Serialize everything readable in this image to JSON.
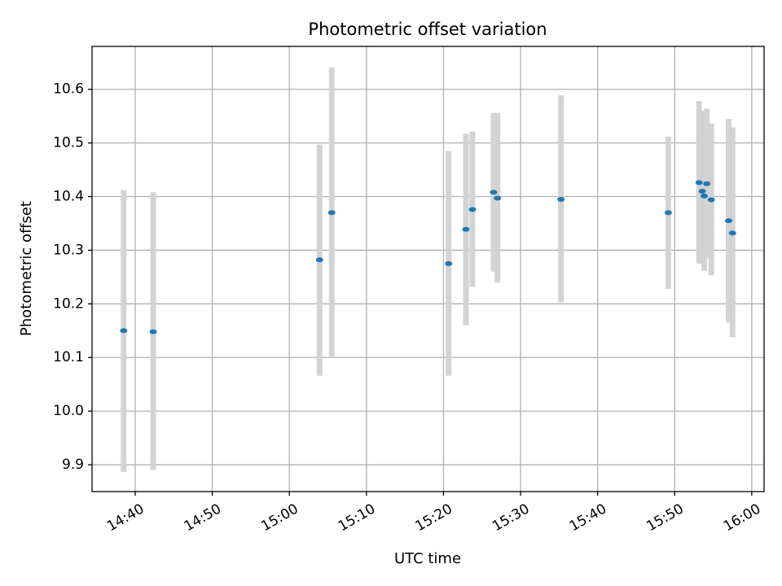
{
  "chart_data": {
    "type": "scatter",
    "title": "Photometric offset variation",
    "xlabel": "UTC time",
    "ylabel": "Photometric offset",
    "grid": true,
    "xlim": [
      "14:34:24",
      "16:01:36"
    ],
    "ylim": [
      9.85,
      10.68
    ],
    "x_ticks": [
      "14:40",
      "14:50",
      "15:00",
      "15:10",
      "15:20",
      "15:30",
      "15:40",
      "15:50",
      "16:00"
    ],
    "y_ticks": [
      "9.9",
      "10.0",
      "10.1",
      "10.2",
      "10.3",
      "10.4",
      "10.5",
      "10.6"
    ],
    "colors": {
      "points": "#1f77b4",
      "errorbars": "#d3d3d3",
      "grid": "#b0b0b0"
    },
    "points": [
      {
        "x": "14:38:30",
        "y": 10.15,
        "ylow": 9.887,
        "yhigh": 10.412
      },
      {
        "x": "14:42:20",
        "y": 10.148,
        "ylow": 9.89,
        "yhigh": 10.408
      },
      {
        "x": "15:03:55",
        "y": 10.282,
        "ylow": 10.066,
        "yhigh": 10.497
      },
      {
        "x": "15:05:30",
        "y": 10.37,
        "ylow": 10.1,
        "yhigh": 10.641
      },
      {
        "x": "15:20:40",
        "y": 10.275,
        "ylow": 10.066,
        "yhigh": 10.485
      },
      {
        "x": "15:22:55",
        "y": 10.339,
        "ylow": 10.16,
        "yhigh": 10.517
      },
      {
        "x": "15:23:45",
        "y": 10.376,
        "ylow": 10.232,
        "yhigh": 10.521
      },
      {
        "x": "15:26:30",
        "y": 10.408,
        "ylow": 10.26,
        "yhigh": 10.556
      },
      {
        "x": "15:27:00",
        "y": 10.397,
        "ylow": 10.24,
        "yhigh": 10.556
      },
      {
        "x": "15:35:15",
        "y": 10.395,
        "ylow": 10.203,
        "yhigh": 10.589
      },
      {
        "x": "15:49:10",
        "y": 10.37,
        "ylow": 10.228,
        "yhigh": 10.512
      },
      {
        "x": "15:53:10",
        "y": 10.426,
        "ylow": 10.275,
        "yhigh": 10.578
      },
      {
        "x": "15:53:35",
        "y": 10.41,
        "ylow": 10.28,
        "yhigh": 10.56
      },
      {
        "x": "15:53:50",
        "y": 10.401,
        "ylow": 10.262,
        "yhigh": 10.545
      },
      {
        "x": "15:54:10",
        "y": 10.424,
        "ylow": 10.285,
        "yhigh": 10.564
      },
      {
        "x": "15:54:45",
        "y": 10.394,
        "ylow": 10.253,
        "yhigh": 10.536
      },
      {
        "x": "15:57:00",
        "y": 10.355,
        "ylow": 10.165,
        "yhigh": 10.545
      },
      {
        "x": "15:57:30",
        "y": 10.332,
        "ylow": 10.138,
        "yhigh": 10.529
      }
    ]
  }
}
